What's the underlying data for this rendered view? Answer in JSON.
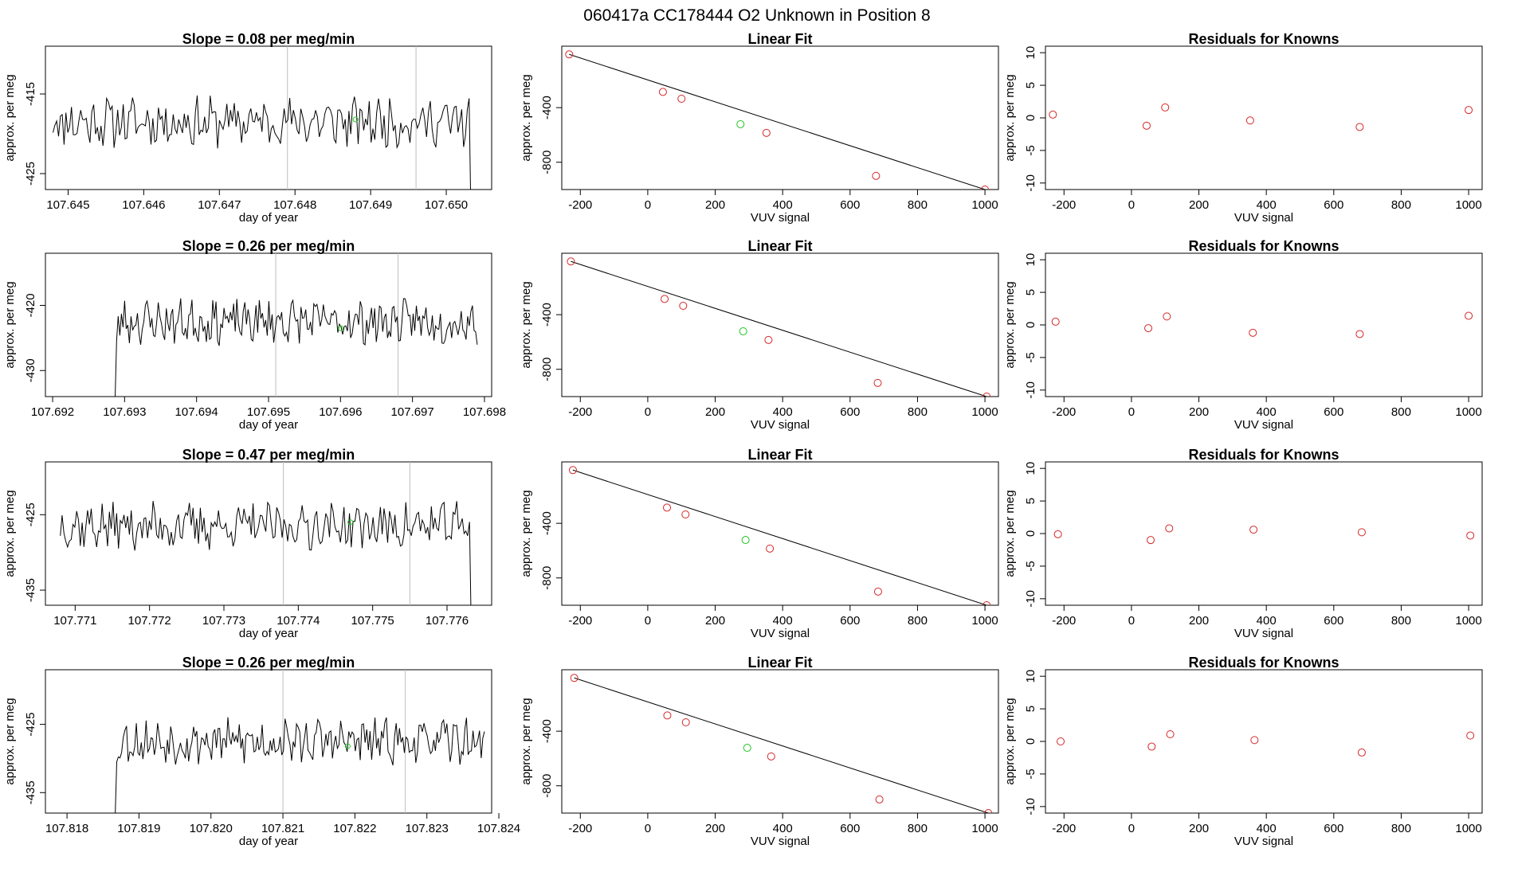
{
  "page": {
    "title": "060417a      CC178444   O2 Unknown in Position  8"
  },
  "chart_data": [
    {
      "type": "line",
      "row": 1,
      "col": 1,
      "title": "Slope =  0.08  per meg/min",
      "xlabel": "day of year",
      "ylabel": "approx. per meg",
      "xlim": [
        107.6447,
        107.6506
      ],
      "ylim": [
        -427,
        -409
      ],
      "xticks": [
        "107.645",
        "107.646",
        "107.647",
        "107.648",
        "107.649",
        "107.650"
      ],
      "xtick_values": [
        107.645,
        107.646,
        107.647,
        107.648,
        107.649,
        107.65
      ],
      "yticks": [
        "-425",
        "-415"
      ],
      "ytick_values": [
        -425,
        -415
      ],
      "vlines": [
        107.6479,
        107.6496
      ],
      "green_point": [
        107.6488,
        -418.2
      ],
      "trace": {
        "x_start": 107.6448,
        "x_end": 107.6504,
        "baseline": -418.5,
        "amp": 2.6,
        "seed": 11,
        "start_drop": 0,
        "end_drop": 1
      }
    },
    {
      "type": "scatter",
      "row": 1,
      "col": 2,
      "title": "Linear Fit",
      "xlabel": "VUV signal",
      "ylabel": "approx. per meg",
      "xlim": [
        -255,
        1040
      ],
      "ylim": [
        -1000,
        50
      ],
      "xticks": [
        "-200",
        "0",
        "200",
        "400",
        "600",
        "800",
        "1000"
      ],
      "xtick_values": [
        -200,
        0,
        200,
        400,
        600,
        800,
        1000
      ],
      "yticks": [
        "-800",
        "-400"
      ],
      "ytick_values": [
        -800,
        -400
      ],
      "x": [
        -233,
        45,
        100,
        352,
        677,
        1000
      ],
      "y": [
        -10,
        -285,
        -335,
        -585,
        -900,
        -1000
      ],
      "fit_line": [
        [
          -233,
          -10
        ],
        [
          1000,
          -1000
        ]
      ],
      "green_point": [
        275,
        -522
      ]
    },
    {
      "type": "scatter",
      "row": 1,
      "col": 3,
      "title": "Residuals for Knowns",
      "xlabel": "VUV signal",
      "ylabel": "approx. per meg",
      "xlim": [
        -255,
        1040
      ],
      "ylim": [
        -11,
        11
      ],
      "xticks": [
        "-200",
        "0",
        "200",
        "400",
        "600",
        "800",
        "1000"
      ],
      "xtick_values": [
        -200,
        0,
        200,
        400,
        600,
        800,
        1000
      ],
      "yticks": [
        "-10",
        "-5",
        "0",
        "5",
        "10"
      ],
      "ytick_values": [
        -10,
        -5,
        0,
        5,
        10
      ],
      "x": [
        -233,
        45,
        100,
        352,
        677,
        1000
      ],
      "y": [
        0.5,
        -1.2,
        1.6,
        -0.4,
        -1.4,
        1.2
      ]
    },
    {
      "type": "line",
      "row": 2,
      "col": 1,
      "title": "Slope =  0.26  per meg/min",
      "xlabel": "day of year",
      "ylabel": "approx. per meg",
      "xlim": [
        107.6919,
        107.6981
      ],
      "ylim": [
        -434,
        -412
      ],
      "xticks": [
        "107.692",
        "107.693",
        "107.694",
        "107.695",
        "107.696",
        "107.697",
        "107.698"
      ],
      "xtick_values": [
        107.692,
        107.693,
        107.694,
        107.695,
        107.696,
        107.697,
        107.698
      ],
      "yticks": [
        "-430",
        "-420"
      ],
      "ytick_values": [
        -430,
        -420
      ],
      "vlines": [
        107.6951,
        107.6968
      ],
      "green_point": [
        107.696,
        -423.5
      ],
      "trace": {
        "x_start": 107.6928,
        "x_end": 107.6979,
        "baseline": -422.5,
        "amp": 2.8,
        "seed": 23,
        "start_drop": 1,
        "end_drop": 0
      }
    },
    {
      "type": "scatter",
      "row": 2,
      "col": 2,
      "title": "Linear Fit",
      "xlabel": "VUV signal",
      "ylabel": "approx. per meg",
      "xlim": [
        -255,
        1040
      ],
      "ylim": [
        -1000,
        50
      ],
      "xticks": [
        "-200",
        "0",
        "200",
        "400",
        "600",
        "800",
        "1000"
      ],
      "xtick_values": [
        -200,
        0,
        200,
        400,
        600,
        800,
        1000
      ],
      "yticks": [
        "-800",
        "-400"
      ],
      "ytick_values": [
        -800,
        -400
      ],
      "x": [
        -228,
        50,
        105,
        358,
        682,
        1005
      ],
      "y": [
        -10,
        -285,
        -335,
        -585,
        -900,
        -1000
      ],
      "fit_line": [
        [
          -228,
          -10
        ],
        [
          1005,
          -1000
        ]
      ],
      "green_point": [
        283,
        -522
      ]
    },
    {
      "type": "scatter",
      "row": 2,
      "col": 3,
      "title": "Residuals for Knowns",
      "xlabel": "VUV signal",
      "ylabel": "approx. per meg",
      "xlim": [
        -255,
        1040
      ],
      "ylim": [
        -11,
        11
      ],
      "xticks": [
        "-200",
        "0",
        "200",
        "400",
        "600",
        "800",
        "1000"
      ],
      "xtick_values": [
        -200,
        0,
        200,
        400,
        600,
        800,
        1000
      ],
      "yticks": [
        "-10",
        "-5",
        "0",
        "5",
        "10"
      ],
      "ytick_values": [
        -10,
        -5,
        0,
        5,
        10
      ],
      "x": [
        -225,
        50,
        105,
        360,
        677,
        1000
      ],
      "y": [
        0.5,
        -0.5,
        1.3,
        -1.2,
        -1.4,
        1.4
      ]
    },
    {
      "type": "line",
      "row": 3,
      "col": 1,
      "title": "Slope =  0.47  per meg/min",
      "xlabel": "day of year",
      "ylabel": "approx. per meg",
      "xlim": [
        107.7706,
        107.7766
      ],
      "ylim": [
        -437,
        -418
      ],
      "xticks": [
        "107.771",
        "107.772",
        "107.773",
        "107.774",
        "107.775",
        "107.776"
      ],
      "xtick_values": [
        107.771,
        107.772,
        107.773,
        107.774,
        107.775,
        107.776
      ],
      "yticks": [
        "-435",
        "-425"
      ],
      "ytick_values": [
        -435,
        -425
      ],
      "vlines": [
        107.7738,
        107.7755
      ],
      "green_point": [
        107.7747,
        -426.0
      ],
      "trace": {
        "x_start": 107.7708,
        "x_end": 107.7764,
        "baseline": -426.5,
        "amp": 2.6,
        "seed": 37,
        "start_drop": 0,
        "end_drop": 1
      }
    },
    {
      "type": "scatter",
      "row": 3,
      "col": 2,
      "title": "Linear Fit",
      "xlabel": "VUV signal",
      "ylabel": "approx. per meg",
      "xlim": [
        -255,
        1040
      ],
      "ylim": [
        -1000,
        50
      ],
      "xticks": [
        "-200",
        "0",
        "200",
        "400",
        "600",
        "800",
        "1000"
      ],
      "xtick_values": [
        -200,
        0,
        200,
        400,
        600,
        800,
        1000
      ],
      "yticks": [
        "-800",
        "-400"
      ],
      "ytick_values": [
        -800,
        -400
      ],
      "x": [
        -222,
        57,
        112,
        362,
        683,
        1005
      ],
      "y": [
        -10,
        -285,
        -335,
        -585,
        -900,
        -1000
      ],
      "fit_line": [
        [
          -222,
          -10
        ],
        [
          1005,
          -1000
        ]
      ],
      "green_point": [
        290,
        -522
      ]
    },
    {
      "type": "scatter",
      "row": 3,
      "col": 3,
      "title": "Residuals for Knowns",
      "xlabel": "VUV signal",
      "ylabel": "approx. per meg",
      "xlim": [
        -255,
        1040
      ],
      "ylim": [
        -11,
        11
      ],
      "xticks": [
        "-200",
        "0",
        "200",
        "400",
        "600",
        "800",
        "1000"
      ],
      "xtick_values": [
        -200,
        0,
        200,
        400,
        600,
        800,
        1000
      ],
      "yticks": [
        "-10",
        "-5",
        "0",
        "5",
        "10"
      ],
      "ytick_values": [
        -10,
        -5,
        0,
        5,
        10
      ],
      "x": [
        -218,
        57,
        112,
        362,
        683,
        1005
      ],
      "y": [
        -0.1,
        -1.0,
        0.8,
        0.6,
        0.2,
        -0.3
      ]
    },
    {
      "type": "line",
      "row": 4,
      "col": 1,
      "title": "Slope =  0.26  per meg/min",
      "xlabel": "day of year",
      "ylabel": "approx. per meg",
      "xlim": [
        107.8177,
        107.8239
      ],
      "ylim": [
        -438,
        -417
      ],
      "xticks": [
        "107.818",
        "107.819",
        "107.820",
        "107.821",
        "107.822",
        "107.823",
        "107.824"
      ],
      "xtick_values": [
        107.818,
        107.819,
        107.82,
        107.821,
        107.822,
        107.823,
        107.824
      ],
      "yticks": [
        "-435",
        "-425"
      ],
      "ytick_values": [
        -435,
        -425
      ],
      "vlines": [
        107.821,
        107.8227
      ],
      "green_point": [
        107.8219,
        -428.2
      ],
      "trace": {
        "x_start": 107.8186,
        "x_end": 107.8238,
        "baseline": -427.5,
        "amp": 2.7,
        "seed": 53,
        "start_drop": 1,
        "end_drop": 0
      }
    },
    {
      "type": "scatter",
      "row": 4,
      "col": 2,
      "title": "Linear Fit",
      "xlabel": "VUV signal",
      "ylabel": "approx. per meg",
      "xlim": [
        -255,
        1040
      ],
      "ylim": [
        -1000,
        50
      ],
      "xticks": [
        "-200",
        "0",
        "200",
        "400",
        "600",
        "800",
        "1000"
      ],
      "xtick_values": [
        -200,
        0,
        200,
        400,
        600,
        800,
        1000
      ],
      "yticks": [
        "-800",
        "-400"
      ],
      "ytick_values": [
        -800,
        -400
      ],
      "x": [
        -218,
        58,
        113,
        366,
        687,
        1010
      ],
      "y": [
        -10,
        -285,
        -335,
        -585,
        -900,
        -1000
      ],
      "fit_line": [
        [
          -218,
          -10
        ],
        [
          1010,
          -1000
        ]
      ],
      "green_point": [
        295,
        -522
      ]
    },
    {
      "type": "scatter",
      "row": 4,
      "col": 3,
      "title": "Residuals for Knowns",
      "xlabel": "VUV signal",
      "ylabel": "approx. per meg",
      "xlim": [
        -255,
        1040
      ],
      "ylim": [
        -11,
        11
      ],
      "xticks": [
        "-200",
        "0",
        "200",
        "400",
        "600",
        "800",
        "1000"
      ],
      "xtick_values": [
        -200,
        0,
        200,
        400,
        600,
        800,
        1000
      ],
      "yticks": [
        "-10",
        "-5",
        "0",
        "5",
        "10"
      ],
      "ytick_values": [
        -10,
        -5,
        0,
        5,
        10
      ],
      "x": [
        -210,
        60,
        115,
        365,
        683,
        1005
      ],
      "y": [
        0.0,
        -0.8,
        1.1,
        0.2,
        -1.7,
        0.9
      ]
    }
  ],
  "colors": {
    "axis": "#000000",
    "trace": "#000000",
    "vline": "#bebebe",
    "known_point": "#d62728",
    "unknown_point": "#22c822"
  }
}
